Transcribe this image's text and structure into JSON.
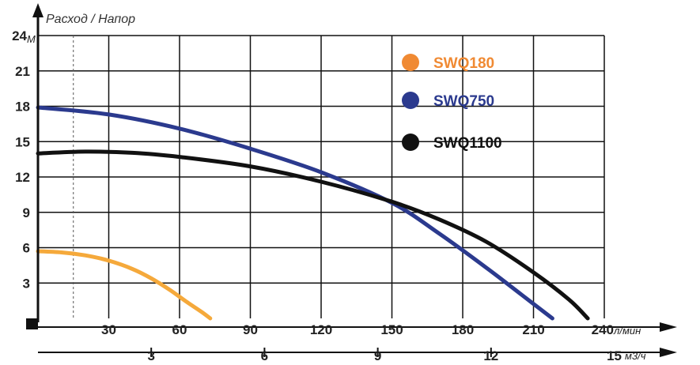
{
  "chart_data": {
    "type": "line",
    "title": "Расход / Напор",
    "ylabel_unit": "М",
    "y_ticks": [
      3,
      6,
      9,
      12,
      15,
      18,
      21,
      24
    ],
    "y_tick_labels": [
      "3",
      "6",
      "9",
      "12",
      "15",
      "18",
      "21",
      "24"
    ],
    "ylim": [
      0,
      24
    ],
    "x_axis_top": {
      "unit": "л/мин",
      "range": [
        0,
        240
      ],
      "ticks": [
        30,
        60,
        90,
        120,
        150,
        180,
        210,
        240
      ],
      "tick_labels": [
        "30",
        "60",
        "90",
        "120",
        "150",
        "180",
        "210",
        "240"
      ]
    },
    "x_axis_bottom": {
      "unit": "м3/ч",
      "range": [
        0,
        15
      ],
      "ticks": [
        3,
        6,
        9,
        12,
        15
      ],
      "tick_labels": [
        "3",
        "6",
        "9",
        "12",
        "15"
      ]
    },
    "grid": true,
    "legend_position": "top-right",
    "series": [
      {
        "name": "SWQ180",
        "color": "#f5a93b",
        "legend_color": "#f08a33",
        "x": [
          0,
          10,
          20,
          30,
          40,
          48,
          56,
          63,
          69,
          73
        ],
        "y": [
          5.7,
          5.6,
          5.35,
          4.9,
          4.2,
          3.4,
          2.4,
          1.4,
          0.6,
          0
        ]
      },
      {
        "name": "SWQ750",
        "color": "#2b3a8e",
        "legend_color": "#2b3a8e",
        "x": [
          0,
          30,
          60,
          90,
          120,
          150,
          170,
          190,
          205,
          218
        ],
        "y": [
          17.9,
          17.3,
          16.1,
          14.4,
          12.4,
          9.8,
          7.2,
          4.3,
          2.0,
          0
        ]
      },
      {
        "name": "SWQ1100",
        "color": "#111111",
        "legend_color": "#111111",
        "x": [
          0,
          20,
          40,
          60,
          90,
          120,
          150,
          170,
          190,
          210,
          225,
          233
        ],
        "y": [
          14.0,
          14.15,
          14.05,
          13.7,
          12.9,
          11.6,
          9.9,
          8.4,
          6.5,
          3.9,
          1.6,
          0
        ]
      }
    ]
  }
}
